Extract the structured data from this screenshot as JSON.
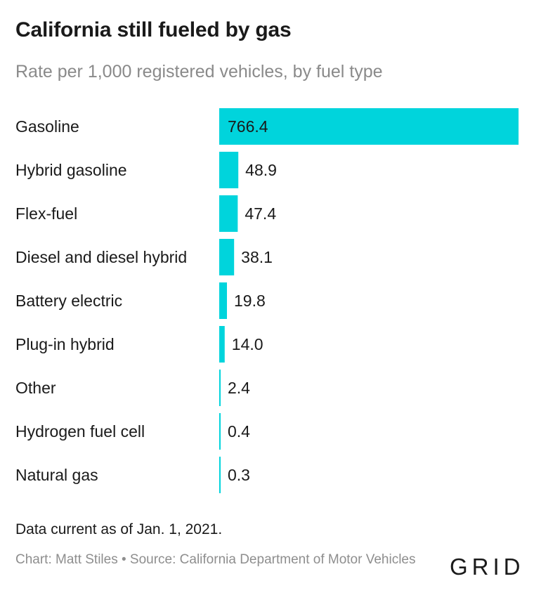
{
  "header": {
    "title": "California still fueled by gas",
    "subtitle": "Rate per 1,000 registered vehicles, by fuel type"
  },
  "chart_data": {
    "type": "bar",
    "orientation": "horizontal",
    "title": "California still fueled by gas",
    "subtitle": "Rate per 1,000 registered vehicles, by fuel type",
    "categories": [
      "Gasoline",
      "Hybrid gasoline",
      "Flex-fuel",
      "Diesel and diesel hybrid",
      "Battery electric",
      "Plug-in hybrid",
      "Other",
      "Hydrogen fuel cell",
      "Natural gas"
    ],
    "values": [
      766.4,
      48.9,
      47.4,
      38.1,
      19.8,
      14.0,
      2.4,
      0.4,
      0.3
    ],
    "value_labels": [
      "766.4",
      "48.9",
      "47.4",
      "38.1",
      "19.8",
      "14.0",
      "2.4",
      "0.4",
      "0.3"
    ],
    "xlim": [
      0,
      766.4
    ],
    "bar_color": "#00d4dc",
    "grid": false
  },
  "footer": {
    "note": "Data current as of Jan. 1, 2021.",
    "credit": "Chart: Matt Stiles • Source: California Department of Motor Vehicles",
    "logo": "GRID"
  }
}
